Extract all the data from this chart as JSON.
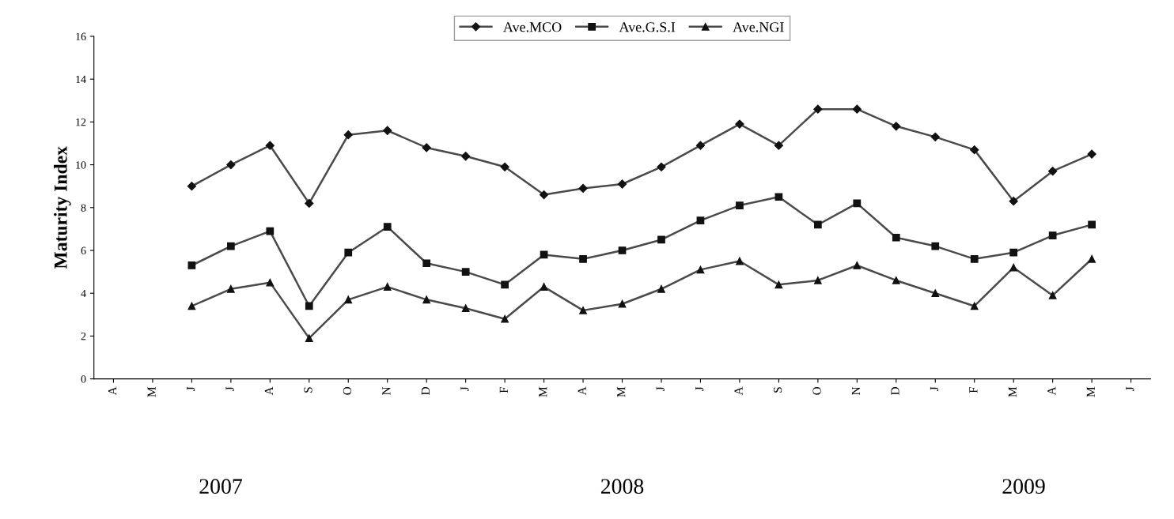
{
  "chart_data": {
    "type": "line",
    "ylabel": "Maturity Index",
    "categories": [
      "A",
      "M",
      "J",
      "J",
      "A",
      "S",
      "O",
      "N",
      "D",
      "J",
      "F",
      "M",
      "A",
      "M",
      "J",
      "J",
      "A",
      "S",
      "O",
      "N",
      "D",
      "J",
      "F",
      "M",
      "A",
      "M",
      "J"
    ],
    "series": [
      {
        "name": "Ave.MCO",
        "color": "#4a4a4a",
        "marker": "diamond",
        "values": [
          null,
          null,
          9.0,
          10.0,
          10.9,
          8.2,
          11.4,
          11.6,
          10.8,
          10.4,
          9.9,
          8.6,
          8.9,
          9.1,
          9.9,
          10.9,
          11.9,
          10.9,
          12.6,
          12.6,
          11.8,
          11.3,
          10.7,
          8.3,
          9.7,
          10.5,
          null
        ]
      },
      {
        "name": "Ave.G.S.I",
        "color": "#4a4a4a",
        "marker": "square",
        "values": [
          null,
          null,
          5.3,
          6.2,
          6.9,
          3.4,
          5.9,
          7.1,
          5.4,
          5.0,
          4.4,
          5.8,
          5.6,
          6.0,
          6.5,
          7.4,
          8.1,
          8.5,
          7.2,
          8.2,
          6.6,
          6.2,
          5.6,
          5.9,
          6.7,
          7.2,
          null
        ]
      },
      {
        "name": "Ave.NGI",
        "color": "#4a4a4a",
        "marker": "triangle",
        "values": [
          null,
          null,
          3.4,
          4.2,
          4.5,
          1.9,
          3.7,
          4.3,
          3.7,
          3.3,
          2.8,
          4.3,
          3.2,
          3.5,
          4.2,
          5.1,
          5.5,
          4.4,
          4.6,
          5.3,
          4.6,
          4.0,
          3.4,
          5.2,
          3.9,
          5.6,
          null
        ]
      }
    ],
    "ylim": [
      0,
      16
    ],
    "yticks": [
      0,
      2,
      4,
      6,
      8,
      10,
      12,
      14,
      16
    ],
    "grid": false,
    "legend": "top",
    "line_style": "solid",
    "annotations": [
      "2007",
      "2008",
      "2009"
    ]
  }
}
